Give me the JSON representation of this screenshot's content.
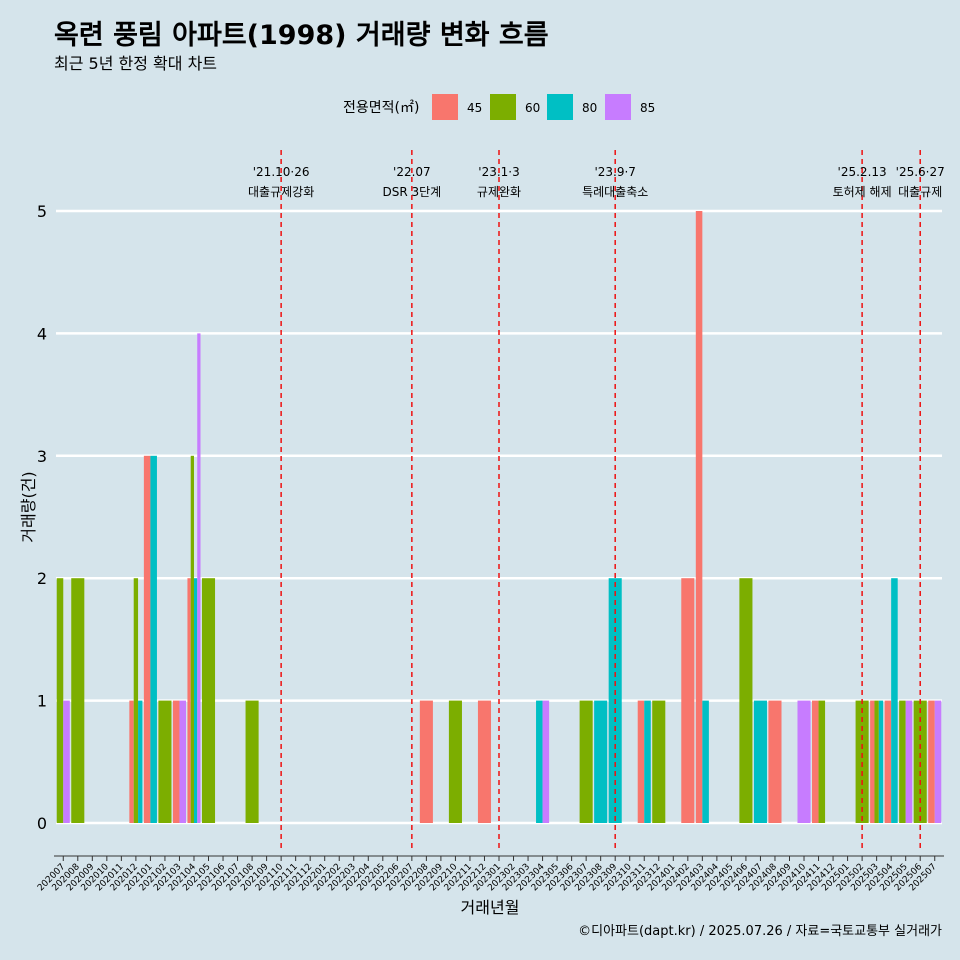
{
  "title": "옥련 풍림 아파트(1998) 거래량 변화 흐름",
  "subtitle": "최근 5년 한정 확대 차트",
  "caption": "©디아파트(dapt.kr) / 2025.07.26 / 자료=국토교통부 실거래가",
  "legend": {
    "title": "전용면적(㎡)",
    "items": [
      {
        "label": "45",
        "color": "#f8766d"
      },
      {
        "label": "60",
        "color": "#7cae00"
      },
      {
        "label": "80",
        "color": "#00bfc4"
      },
      {
        "label": "85",
        "color": "#c77cff"
      }
    ]
  },
  "chart_data": {
    "type": "bar",
    "xlabel": "거래년월",
    "ylabel": "거래량(건)",
    "ylim": [
      0,
      5
    ],
    "yticks": [
      "0",
      "1",
      "2",
      "3",
      "4",
      "5"
    ],
    "categories": [
      "202007",
      "202008",
      "202009",
      "202010",
      "202011",
      "202012",
      "202101",
      "202102",
      "202103",
      "202104",
      "202105",
      "202106",
      "202107",
      "202108",
      "202109",
      "202110",
      "202111",
      "202112",
      "202201",
      "202202",
      "202203",
      "202204",
      "202205",
      "202206",
      "202207",
      "202208",
      "202209",
      "202210",
      "202211",
      "202212",
      "202301",
      "202302",
      "202303",
      "202304",
      "202305",
      "202306",
      "202307",
      "202308",
      "202309",
      "202310",
      "202311",
      "202312",
      "202401",
      "202402",
      "202403",
      "202404",
      "202405",
      "202406",
      "202407",
      "202408",
      "202409",
      "202410",
      "202411",
      "202412",
      "202501",
      "202502",
      "202503",
      "202504",
      "202505",
      "202506",
      "202507"
    ],
    "series": [
      {
        "name": "45",
        "points": [
          [
            "202012",
            1
          ],
          [
            "202101",
            3
          ],
          [
            "202103",
            1
          ],
          [
            "202104",
            2
          ],
          [
            "202208",
            1
          ],
          [
            "202212",
            1
          ],
          [
            "202311",
            1
          ],
          [
            "202402",
            2
          ],
          [
            "202403",
            5
          ],
          [
            "202408",
            1
          ],
          [
            "202411",
            1
          ],
          [
            "202503",
            1
          ],
          [
            "202504",
            1
          ],
          [
            "202507",
            1
          ]
        ]
      },
      {
        "name": "60",
        "points": [
          [
            "202007",
            2
          ],
          [
            "202008",
            2
          ],
          [
            "202012",
            2
          ],
          [
            "202102",
            1
          ],
          [
            "202104",
            3
          ],
          [
            "202105",
            2
          ],
          [
            "202108",
            1
          ],
          [
            "202210",
            1
          ],
          [
            "202307",
            1
          ],
          [
            "202312",
            1
          ],
          [
            "202406",
            2
          ],
          [
            "202411",
            1
          ],
          [
            "202502",
            1
          ],
          [
            "202503",
            1
          ],
          [
            "202505",
            1
          ],
          [
            "202506",
            1
          ]
        ]
      },
      {
        "name": "80",
        "points": [
          [
            "202012",
            1
          ],
          [
            "202101",
            3
          ],
          [
            "202104",
            2
          ],
          [
            "202304",
            1
          ],
          [
            "202308",
            1
          ],
          [
            "202309",
            2
          ],
          [
            "202311",
            1
          ],
          [
            "202403",
            1
          ],
          [
            "202407",
            1
          ],
          [
            "202503",
            1
          ],
          [
            "202504",
            2
          ]
        ]
      },
      {
        "name": "85",
        "points": [
          [
            "202007",
            1
          ],
          [
            "202103",
            1
          ],
          [
            "202104",
            4
          ],
          [
            "202304",
            1
          ],
          [
            "202410",
            1
          ],
          [
            "202505",
            1
          ],
          [
            "202507",
            1
          ]
        ]
      }
    ],
    "events": [
      {
        "date": "202110",
        "label1": "'21.10·26",
        "label2": "대출규제강화"
      },
      {
        "date": "202207",
        "label1": "'22.07",
        "label2": "DSR 3단계"
      },
      {
        "date": "202301",
        "label1": "'23.1·3",
        "label2": "규제완화"
      },
      {
        "date": "202309",
        "label1": "'23.9·7",
        "label2": "특례대출축소"
      },
      {
        "date": "202502",
        "label1": "'25.2.13",
        "label2": "토허제 해제"
      },
      {
        "date": "202506",
        "label1": "'25.6·27",
        "label2": "대출규제"
      }
    ]
  }
}
